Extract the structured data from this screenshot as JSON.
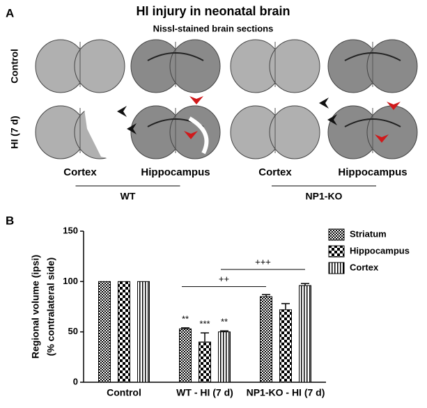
{
  "figure": {
    "panel_a": {
      "label": "A",
      "title": "HI injury in neonatal brain",
      "subtitle": "Nissl-stained brain sections",
      "rows": [
        "Control",
        "HI (7 d)"
      ],
      "groups": [
        {
          "name": "WT",
          "columns": [
            "Cortex",
            "Hippocampus"
          ]
        },
        {
          "name": "NP1-KO",
          "columns": [
            "Cortex",
            "Hippocampus"
          ]
        }
      ]
    }
  },
  "chart_data": {
    "type": "bar",
    "panel_label": "B",
    "y_label": [
      "Regional volume (ipsi)",
      "(% contralateral side)"
    ],
    "categories": [
      "Control",
      "WT - HI (7 d)",
      "NP1-KO - HI (7 d)"
    ],
    "series": [
      {
        "name": "Striatum",
        "color": "#000000",
        "pattern": "fine-check",
        "values": [
          100,
          53,
          85
        ],
        "errors": [
          null,
          1,
          2
        ],
        "significance": [
          null,
          "**",
          null
        ]
      },
      {
        "name": "Hippocampus",
        "color": "#000000",
        "pattern": "coarse-check",
        "values": [
          100,
          40,
          72
        ],
        "errors": [
          null,
          9,
          6
        ],
        "significance": [
          null,
          "***",
          null
        ]
      },
      {
        "name": "Cortex",
        "color": "#000000",
        "pattern": "vertical-stripes",
        "values": [
          100,
          50,
          96
        ],
        "errors": [
          null,
          1,
          2
        ],
        "significance": [
          null,
          "**",
          null
        ]
      }
    ],
    "comparisons": [
      "++",
      "+++"
    ],
    "ylim": [
      0,
      150
    ],
    "yticks": [
      0,
      50,
      100,
      150
    ],
    "grid": false,
    "legend": "top-right"
  }
}
